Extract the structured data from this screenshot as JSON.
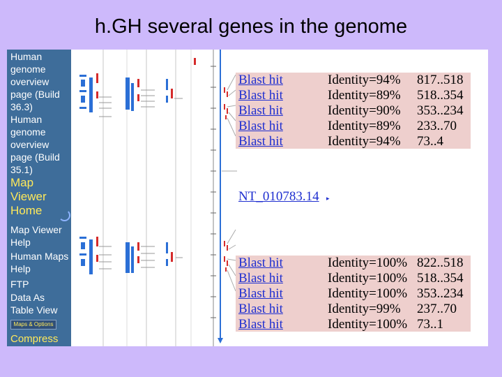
{
  "slide": {
    "title": "h.GH several genes in the genome"
  },
  "sidebar": {
    "links": [
      "Human genome overview page (Build 36.3)",
      "Human genome overview page (Build 35.1)"
    ],
    "map_viewer_home": "Map Viewer Home",
    "help_links": [
      "Map Viewer Help",
      "Human Maps Help",
      "FTP",
      "Data As Table View"
    ],
    "maps_options": "Maps & Options",
    "compress": "Compress"
  },
  "hits_top": [
    {
      "link": "Blast hit",
      "identity": "Identity=94%",
      "range": "817..518"
    },
    {
      "link": "Blast hit",
      "identity": "Identity=89%",
      "range": "518..354"
    },
    {
      "link": "Blast hit",
      "identity": "Identity=90%",
      "range": "353..234"
    },
    {
      "link": "Blast hit",
      "identity": "Identity=89%",
      "range": "233..70"
    },
    {
      "link": "Blast hit",
      "identity": "Identity=94%",
      "range": "73..4"
    }
  ],
  "contig": {
    "label": "NT_010783.14"
  },
  "hits_bottom": [
    {
      "link": "Blast hit",
      "identity": "Identity=100%",
      "range": "822..518"
    },
    {
      "link": "Blast hit",
      "identity": "Identity=100%",
      "range": "518..354"
    },
    {
      "link": "Blast hit",
      "identity": "Identity=100%",
      "range": "353..234"
    },
    {
      "link": "Blast hit",
      "identity": "Identity=99%",
      "range": "237..70"
    },
    {
      "link": "Blast hit",
      "identity": "Identity=100%",
      "range": "73..1"
    }
  ],
  "colors": {
    "background": "#cdb9fb",
    "sidebar": "#3e6d9a",
    "hit_panel": "#eecfcd",
    "link": "#1f2fd0",
    "accent": "#ffe95a"
  }
}
